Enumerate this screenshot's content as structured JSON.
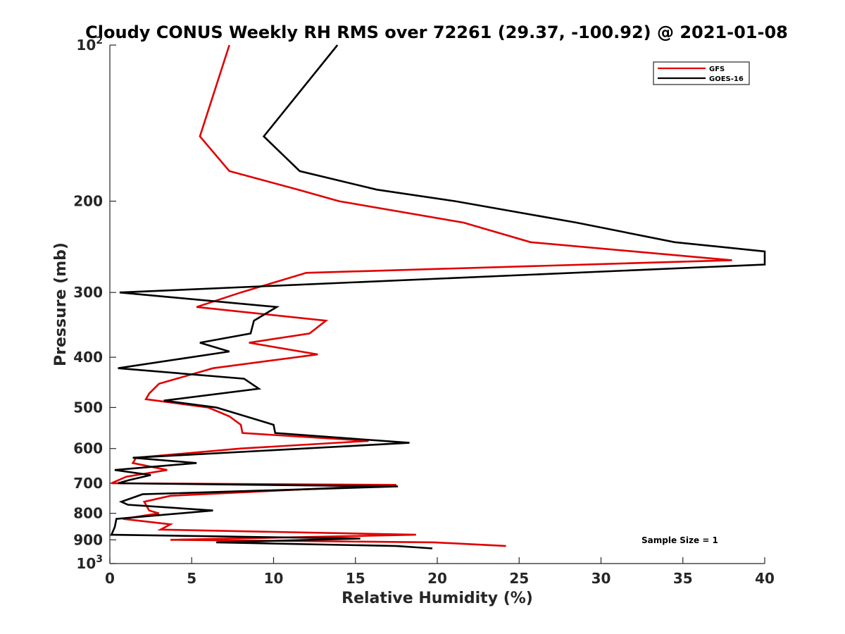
{
  "chart_data": {
    "type": "line",
    "title": "Cloudy CONUS Weekly RH RMS over 72261 (29.37, -100.92) @ 2021-01-08",
    "xlabel": "Relative Humidity (%)",
    "ylabel": "Pressure (mb)",
    "xlim": [
      0,
      40
    ],
    "ylim": [
      100,
      1000
    ],
    "y_scale": "log",
    "y_reversed": true,
    "x_ticks": [
      0,
      5,
      10,
      15,
      20,
      25,
      30,
      35,
      40
    ],
    "y_ticks": [
      {
        "value": 100,
        "base": "10",
        "exp": "2"
      },
      {
        "value": 200,
        "label": "200"
      },
      {
        "value": 300,
        "label": "300"
      },
      {
        "value": 400,
        "label": "400"
      },
      {
        "value": 500,
        "label": "500"
      },
      {
        "value": 600,
        "label": "600"
      },
      {
        "value": 700,
        "label": "700"
      },
      {
        "value": 800,
        "label": "800"
      },
      {
        "value": 900,
        "label": "900"
      },
      {
        "value": 1000,
        "base": "10",
        "exp": "3"
      }
    ],
    "grid": false,
    "legend_position": "top-right",
    "annotation": "Sample Size = 1",
    "series": [
      {
        "name": "GFS",
        "color": "#e00000",
        "points": [
          [
            7.3,
            100
          ],
          [
            5.5,
            150
          ],
          [
            7.3,
            175
          ],
          [
            11.5,
            190
          ],
          [
            14.0,
            200
          ],
          [
            21.6,
            220
          ],
          [
            25.7,
            240
          ],
          [
            38.0,
            260
          ],
          [
            12.0,
            275
          ],
          [
            8.0,
            300
          ],
          [
            5.3,
            320
          ],
          [
            13.2,
            340
          ],
          [
            12.2,
            360
          ],
          [
            8.5,
            375
          ],
          [
            12.7,
            395
          ],
          [
            6.3,
            420
          ],
          [
            3.0,
            450
          ],
          [
            2.4,
            470
          ],
          [
            2.2,
            482
          ],
          [
            6.0,
            500
          ],
          [
            7.3,
            520
          ],
          [
            8.0,
            540
          ],
          [
            8.1,
            560
          ],
          [
            15.8,
            580
          ],
          [
            8.0,
            600
          ],
          [
            1.6,
            625
          ],
          [
            1.4,
            640
          ],
          [
            3.5,
            660
          ],
          [
            1.0,
            680
          ],
          [
            0.1,
            700
          ],
          [
            17.5,
            705
          ],
          [
            3.7,
            740
          ],
          [
            2.1,
            760
          ],
          [
            2.4,
            790
          ],
          [
            3.0,
            800
          ],
          [
            0.8,
            820
          ],
          [
            3.7,
            840
          ],
          [
            3.1,
            860
          ],
          [
            18.7,
            880
          ],
          [
            3.7,
            900
          ],
          [
            19.8,
            910
          ],
          [
            24.2,
            925
          ]
        ]
      },
      {
        "name": "GOES-16",
        "color": "#000000",
        "points": [
          [
            13.9,
            100
          ],
          [
            9.4,
            150
          ],
          [
            11.6,
            175
          ],
          [
            16.3,
            190
          ],
          [
            21.1,
            200
          ],
          [
            28.5,
            220
          ],
          [
            34.5,
            240
          ],
          [
            40.0,
            250
          ],
          [
            40.0,
            265
          ],
          [
            0.6,
            300
          ],
          [
            10.2,
            320
          ],
          [
            8.8,
            340
          ],
          [
            8.6,
            360
          ],
          [
            5.5,
            375
          ],
          [
            7.3,
            390
          ],
          [
            0.5,
            420
          ],
          [
            8.2,
            440
          ],
          [
            9.1,
            460
          ],
          [
            3.3,
            485
          ],
          [
            6.5,
            500
          ],
          [
            10.0,
            540
          ],
          [
            10.1,
            560
          ],
          [
            18.3,
            585
          ],
          [
            1.4,
            625
          ],
          [
            5.3,
            640
          ],
          [
            0.3,
            660
          ],
          [
            2.5,
            675
          ],
          [
            1.2,
            690
          ],
          [
            0.5,
            700
          ],
          [
            17.6,
            710
          ],
          [
            2.0,
            735
          ],
          [
            0.7,
            760
          ],
          [
            1.1,
            770
          ],
          [
            6.3,
            790
          ],
          [
            0.4,
            820
          ],
          [
            0.3,
            850
          ],
          [
            0.1,
            880
          ],
          [
            15.3,
            895
          ],
          [
            6.5,
            910
          ],
          [
            17.5,
            925
          ],
          [
            19.7,
            935
          ]
        ]
      }
    ]
  }
}
